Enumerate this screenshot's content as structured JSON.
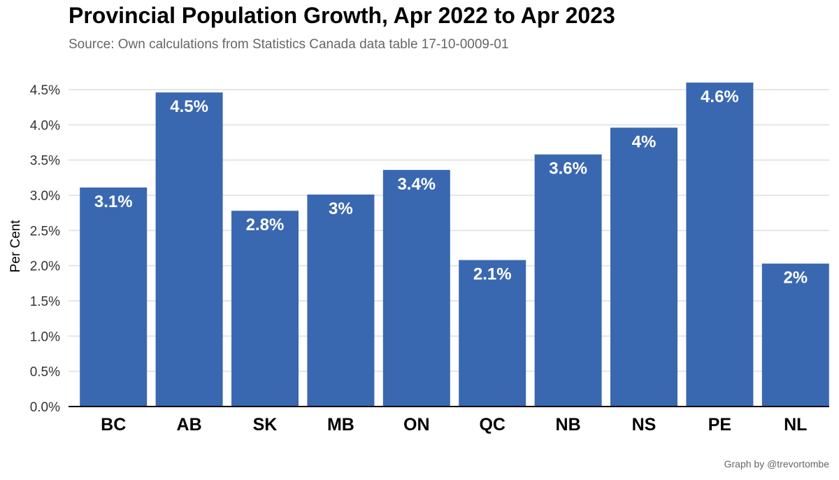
{
  "chart_data": {
    "type": "bar",
    "title": "Provincial Population Growth, Apr 2022 to Apr 2023",
    "subtitle": "Source: Own calculations from Statistics Canada data table 17-10-0009-01",
    "ylabel": "Per Cent",
    "xlabel": "",
    "categories": [
      "BC",
      "AB",
      "SK",
      "MB",
      "ON",
      "QC",
      "NB",
      "NS",
      "PE",
      "NL"
    ],
    "values": [
      3.11,
      4.46,
      2.78,
      3.01,
      3.36,
      2.08,
      3.58,
      3.96,
      4.6,
      2.03
    ],
    "data_labels": [
      "3.1%",
      "4.5%",
      "2.8%",
      "3%",
      "3.4%",
      "2.1%",
      "3.6%",
      "4%",
      "4.6%",
      "2%"
    ],
    "yticks": [
      0,
      0.5,
      1,
      1.5,
      2,
      2.5,
      3,
      3.5,
      4,
      4.5
    ],
    "ytick_labels": [
      "0.0%",
      "0.5%",
      "1.0%",
      "1.5%",
      "2.0%",
      "2.5%",
      "3.0%",
      "3.5%",
      "4.0%",
      "4.5%"
    ],
    "ylim": [
      0,
      4.65
    ],
    "grid": true,
    "legend": "none",
    "bar_color": "#3a68b0",
    "caption": "Graph by @trevortombe"
  }
}
